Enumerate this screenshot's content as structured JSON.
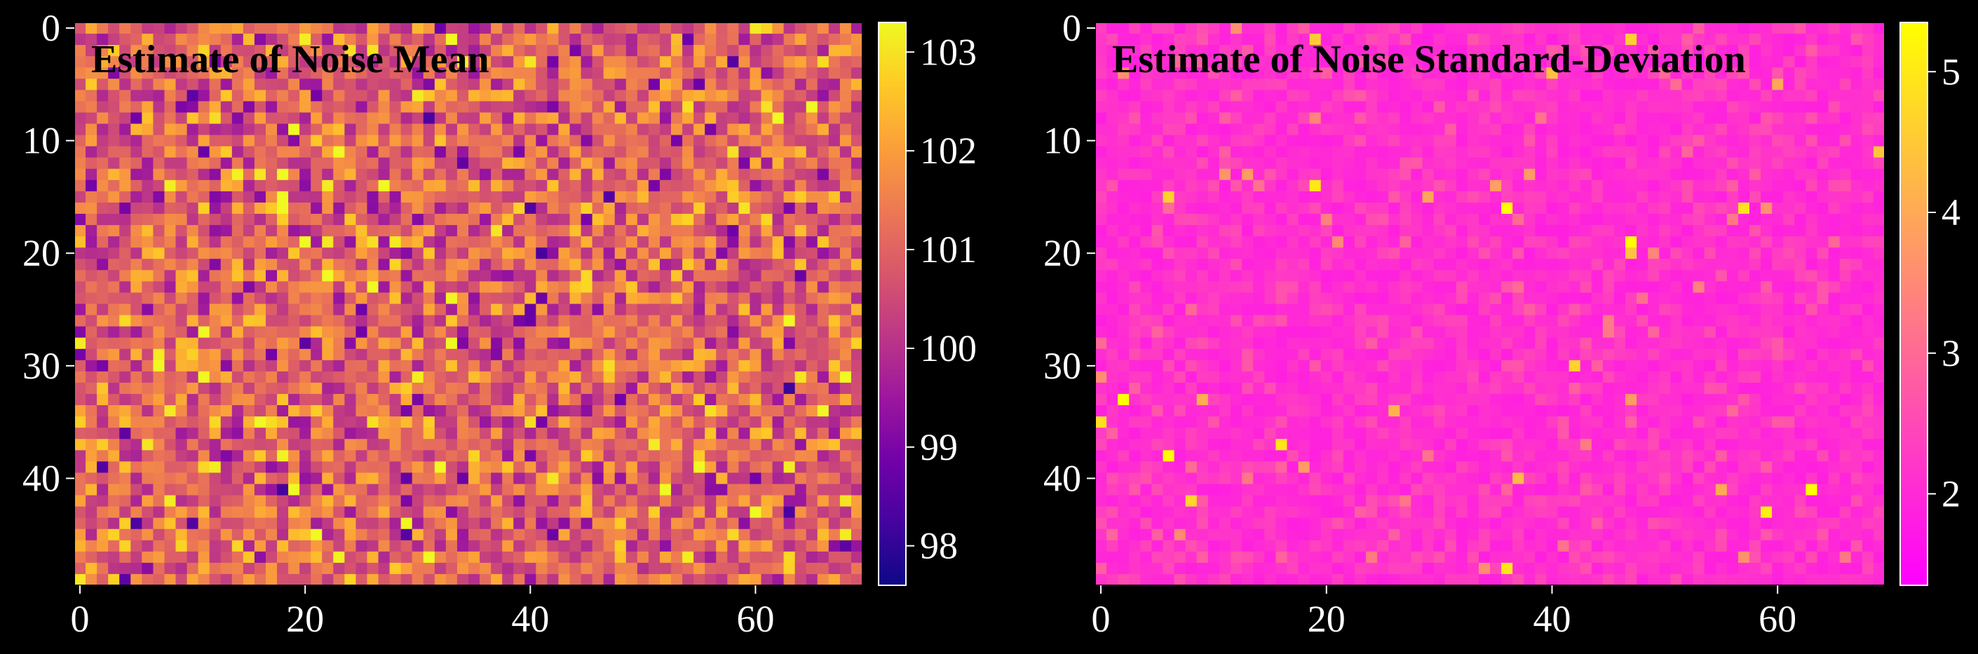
{
  "colors": {
    "background": "#000000",
    "text": "#ffffff",
    "title": "#000000"
  },
  "chart_data": [
    {
      "type": "heatmap",
      "title": "Estimate of Noise Mean",
      "colormap": "plasma",
      "grid_shape": [
        50,
        70
      ],
      "xlim": [
        -0.5,
        69.5
      ],
      "ylim": [
        49.5,
        -0.5
      ],
      "x_ticks": [
        0,
        20,
        40,
        60
      ],
      "y_ticks": [
        0,
        10,
        20,
        30,
        40
      ],
      "colorbar": {
        "min": 97.6,
        "max": 103.3,
        "ticks": [
          98,
          99,
          100,
          101,
          102,
          103
        ]
      },
      "value_center": 101.0,
      "value_spread": 0.9,
      "value_clip": [
        97.6,
        103.3
      ],
      "seed": 11
    },
    {
      "type": "heatmap",
      "title": "Estimate of Noise Standard-Deviation",
      "colormap": "spring",
      "grid_shape": [
        50,
        70
      ],
      "xlim": [
        -0.5,
        69.5
      ],
      "ylim": [
        49.5,
        -0.5
      ],
      "x_ticks": [
        0,
        20,
        40,
        60
      ],
      "y_ticks": [
        0,
        10,
        20,
        30,
        40
      ],
      "colorbar": {
        "min": 1.35,
        "max": 5.35,
        "ticks": [
          2,
          3,
          4,
          5
        ]
      },
      "value_center": 2.0,
      "value_spread": 0.35,
      "value_clip": [
        1.35,
        5.35
      ],
      "seed": 29
    }
  ]
}
